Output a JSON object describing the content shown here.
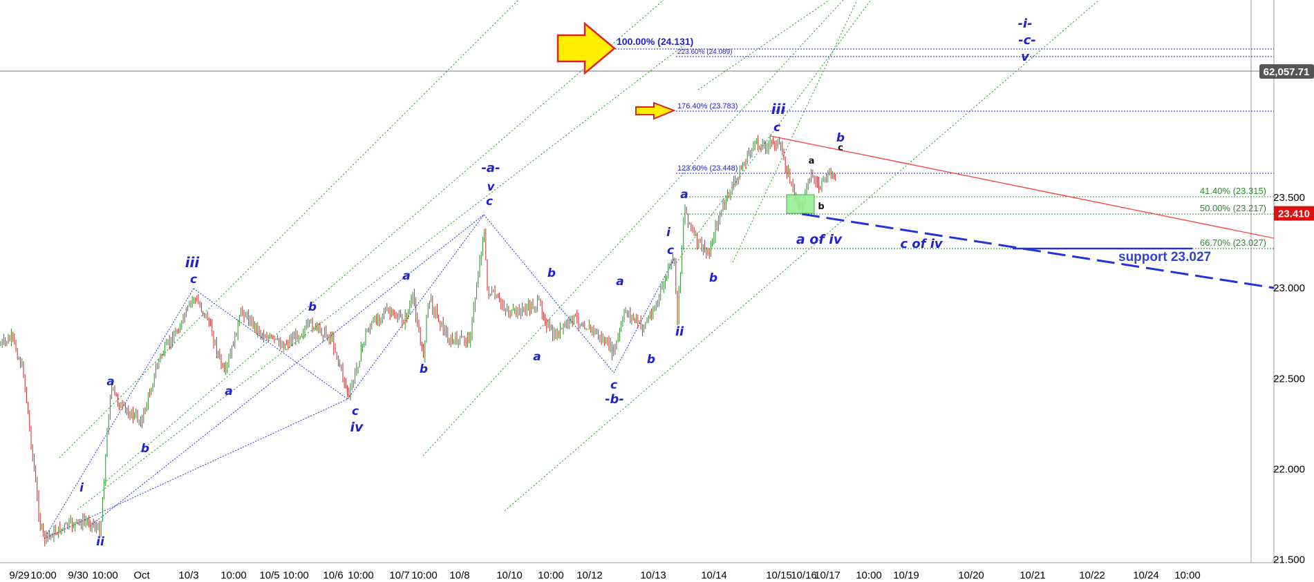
{
  "chart_data": {
    "type": "line",
    "subtype": "candlestick price chart with Elliott wave annotations",
    "title": "",
    "xlabel": "",
    "ylabel": "",
    "x_tick_labels": [
      "9/29",
      "10:00",
      "9/30",
      "10:00",
      "Oct",
      "10/3",
      "10:00",
      "10/5",
      "10:00",
      "10/6",
      "10:00",
      "10/7",
      "10:00",
      "10/8",
      "10/10",
      "10:00",
      "10/12",
      "10/13",
      "10/14",
      "10/15",
      "10/16",
      "10/17",
      "10:00",
      "10/19",
      "10/20",
      "10/21",
      "10/22",
      "10/24",
      "10:00"
    ],
    "y_ticks": [
      21.5,
      22.0,
      22.5,
      23.0,
      23.5
    ],
    "y_tick_labels": [
      "21.500",
      "22.000",
      "22.500",
      "23.000",
      "23.500"
    ],
    "ylim": [
      21.35,
      24.25
    ],
    "grid": false,
    "last_price": {
      "value": 23.41,
      "label": "23.410",
      "color": "#dd1111"
    },
    "crosshair_readout": {
      "label": "62,057.71",
      "color": "#555555"
    },
    "price_series": [
      {
        "x": "9/29",
        "y": 22.55
      },
      {
        "x": "9/29 10:00",
        "y": 22.35
      },
      {
        "x": "9/29 p",
        "y": 21.45
      },
      {
        "x": "9/30",
        "y": 21.55
      },
      {
        "x": "9/30 10:00",
        "y": 21.5
      },
      {
        "x": "9/30 p",
        "y": 22.2
      },
      {
        "x": "Oct",
        "y": 22.05
      },
      {
        "x": "Oct p",
        "y": 22.45
      },
      {
        "x": "10/3",
        "y": 22.75
      },
      {
        "x": "10/3 10:00",
        "y": 22.35
      },
      {
        "x": "10/3 p",
        "y": 22.7
      },
      {
        "x": "10/5",
        "y": 22.45
      },
      {
        "x": "10/5 10:00",
        "y": 22.65
      },
      {
        "x": "10/6",
        "y": 22.45
      },
      {
        "x": "10/6 10:00",
        "y": 22.25
      },
      {
        "x": "10/6 p",
        "y": 22.55
      },
      {
        "x": "10/7",
        "y": 22.7
      },
      {
        "x": "10/7 10:00",
        "y": 22.45
      },
      {
        "x": "10/7 p",
        "y": 22.55
      },
      {
        "x": "10/8",
        "y": 22.5
      },
      {
        "x": "10/8 p",
        "y": 23.15
      },
      {
        "x": "10/8 p2",
        "y": 22.7
      },
      {
        "x": "10/10",
        "y": 22.6
      },
      {
        "x": "10/10 10:00",
        "y": 22.65
      },
      {
        "x": "10/10 p",
        "y": 22.55
      },
      {
        "x": "10/12",
        "y": 22.65
      },
      {
        "x": "10/12 p",
        "y": 22.35
      },
      {
        "x": "10/12 p2",
        "y": 22.7
      },
      {
        "x": "10/12 p3",
        "y": 22.5
      },
      {
        "x": "10/13",
        "y": 22.8
      },
      {
        "x": "10/13 p",
        "y": 22.65
      },
      {
        "x": "10/13 p2",
        "y": 23.25
      },
      {
        "x": "10/13 p3",
        "y": 23.05
      },
      {
        "x": "10/14",
        "y": 22.95
      },
      {
        "x": "10/14 p",
        "y": 23.35
      },
      {
        "x": "10/14 p2",
        "y": 23.6
      },
      {
        "x": "10/15",
        "y": 23.6
      },
      {
        "x": "10/15 p",
        "y": 23.25
      },
      {
        "x": "10/16",
        "y": 23.2
      },
      {
        "x": "10/16 p",
        "y": 23.45
      },
      {
        "x": "10/17",
        "y": 23.35
      },
      {
        "x": "10/17 p",
        "y": 23.41
      }
    ],
    "fib_levels": [
      {
        "label": "100.00% (24.131)",
        "value": 24.131,
        "color": "#2222cc"
      },
      {
        "label": "223.60% (24.089)",
        "value": 24.089,
        "color": "#2222cc"
      },
      {
        "label": "176.40% (23.783)",
        "value": 23.783,
        "color": "#2222cc"
      },
      {
        "label": "123.60% (23.448)",
        "value": 23.448,
        "color": "#2222cc"
      },
      {
        "label": "41.40% (23.315)",
        "value": 23.315,
        "color": "#2a8a2a"
      },
      {
        "label": "50.00% (23.217)",
        "value": 23.217,
        "color": "#2a8a2a"
      },
      {
        "label": "66.70% (23.027)",
        "value": 23.027,
        "color": "#2a8a2a"
      }
    ],
    "annotations": {
      "support": "support 23.027",
      "c_of_iv": "c of iv",
      "a_of_iv": "a of iv",
      "wave_labels": [
        "i",
        "ii",
        "iii",
        "iv",
        "v",
        "a",
        "b",
        "c",
        "-a-",
        "-b-",
        "-c-",
        "-i-"
      ]
    },
    "colors": {
      "up_candle": "#2a8a2a",
      "down_candle": "#cc2222",
      "wave_text": "#2222cc",
      "channel": "#2a9a2a",
      "resistance_line": "#ff4444",
      "support_line": "#2233dd",
      "arrow_fill": "#ffee00",
      "arrow_stroke": "#dd2222"
    }
  }
}
